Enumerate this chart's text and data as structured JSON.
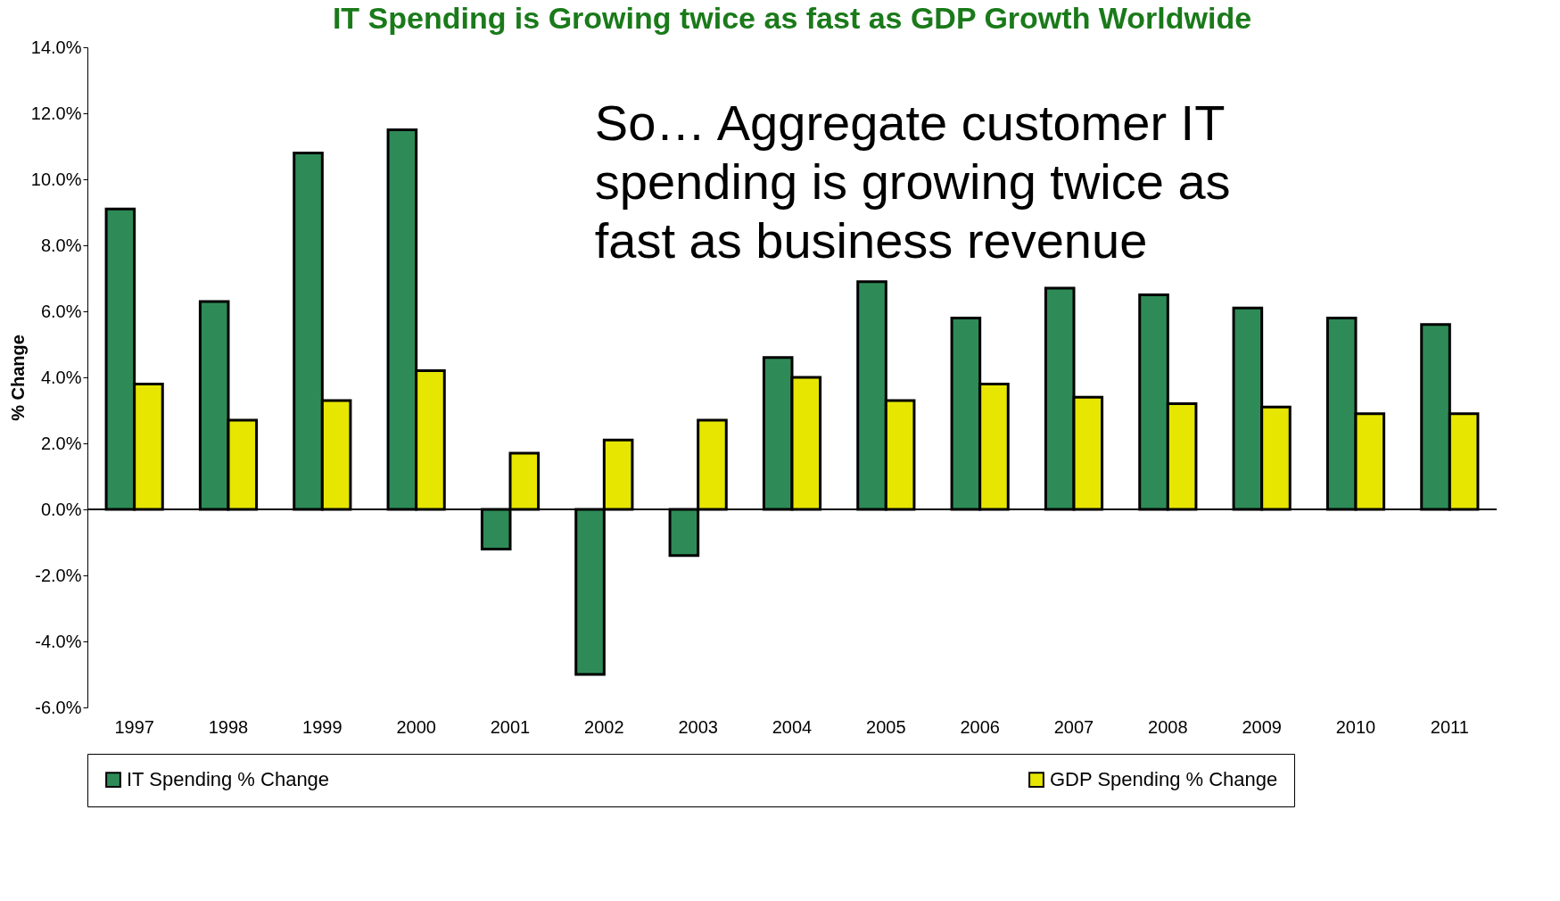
{
  "chart_data": {
    "type": "bar",
    "title": "IT Spending is Growing twice as fast as GDP Growth Worldwide",
    "ylabel": "% Change",
    "categories": [
      "1997",
      "1998",
      "1999",
      "2000",
      "2001",
      "2002",
      "2003",
      "2004",
      "2005",
      "2006",
      "2007",
      "2008",
      "2009",
      "2010",
      "2011"
    ],
    "series": [
      {
        "name": "IT Spending % Change",
        "color": "#2e8b57",
        "values": [
          9.1,
          6.3,
          10.8,
          11.5,
          -1.2,
          -5.0,
          -1.4,
          4.6,
          6.9,
          5.8,
          6.7,
          6.5,
          6.1,
          5.8,
          5.6
        ]
      },
      {
        "name": "GDP Spending % Change",
        "color": "#e6e600",
        "values": [
          3.8,
          2.7,
          3.3,
          4.2,
          1.7,
          2.1,
          2.7,
          4.0,
          3.3,
          3.8,
          3.4,
          3.2,
          3.1,
          2.9,
          2.9
        ]
      }
    ],
    "ylim": [
      -6,
      14
    ],
    "yticks": [
      {
        "value": -6,
        "label": "-6.0%"
      },
      {
        "value": -4,
        "label": "-4.0%"
      },
      {
        "value": -2,
        "label": "-2.0%"
      },
      {
        "value": 0,
        "label": "0.0%"
      },
      {
        "value": 2,
        "label": "2.0%"
      },
      {
        "value": 4,
        "label": "4.0%"
      },
      {
        "value": 6,
        "label": "6.0%"
      },
      {
        "value": 8,
        "label": "8.0%"
      },
      {
        "value": 10,
        "label": "10.0%"
      },
      {
        "value": 12,
        "label": "12.0%"
      },
      {
        "value": 14,
        "label": "14.0%"
      }
    ],
    "annotations": [
      "So… Aggregate customer IT spending is growing twice as fast as business revenue"
    ],
    "ref_lines": [
      {
        "axis": "y",
        "value": 0,
        "color": "#000000"
      }
    ],
    "grid": false,
    "legend": "bottom"
  }
}
